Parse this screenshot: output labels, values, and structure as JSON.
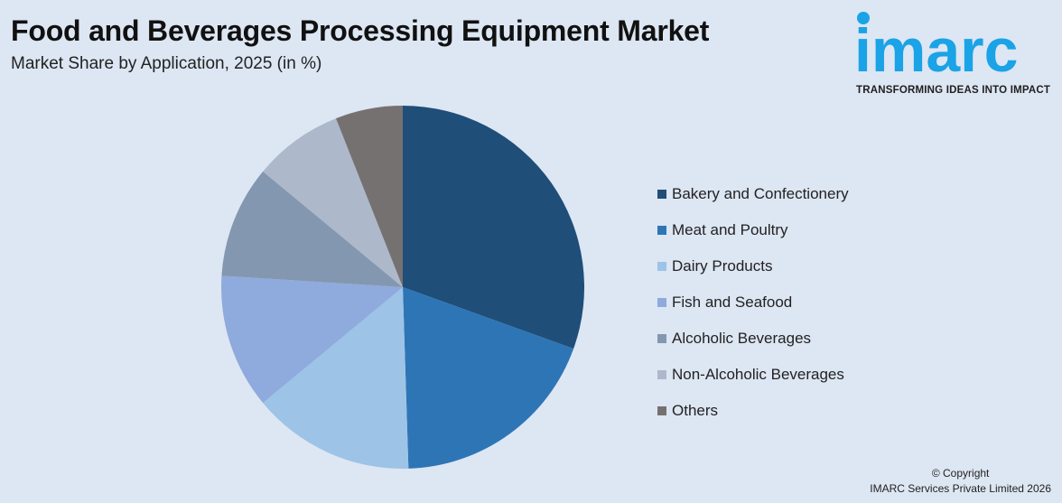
{
  "header": {
    "title": "Food and Beverages Processing Equipment Market",
    "subtitle": "Market Share by Application, 2025 (in %)"
  },
  "logo": {
    "wordmark": "imarc",
    "tagline": "TRANSFORMING IDEAS INTO IMPACT",
    "color": "#1aa3e6"
  },
  "footer": {
    "copyright_line1": "© Copyright",
    "copyright_line2": "IMARC Services Private Limited 2026"
  },
  "chart_data": {
    "type": "pie",
    "categories": [
      "Bakery and Confectionery",
      "Meat and Poultry",
      "Dairy Products",
      "Fish and Seafood",
      "Alcoholic Beverages",
      "Non-Alcoholic Beverages",
      "Others"
    ],
    "values": [
      30.5,
      19.0,
      14.5,
      12.0,
      10.0,
      8.0,
      6.0
    ],
    "colors": [
      "#1f4e79",
      "#2e75b6",
      "#9dc3e6",
      "#8faadc",
      "#8497b0",
      "#adb9ca",
      "#767171"
    ],
    "start_angle": "12 o'clock",
    "direction": "clockwise",
    "legend_position": "right"
  }
}
